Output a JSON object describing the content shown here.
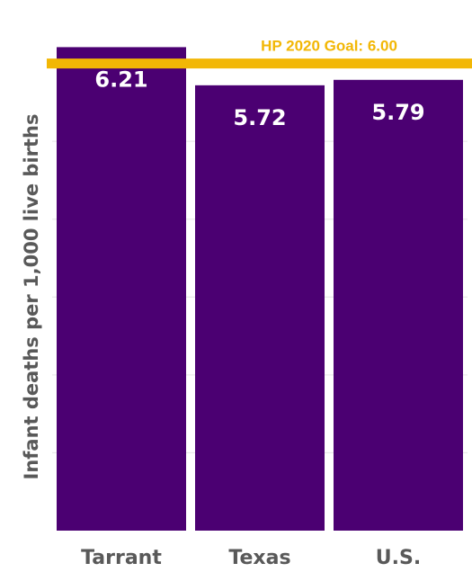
{
  "chart_data": {
    "type": "bar",
    "categories": [
      "Tarrant",
      "Texas",
      "U.S."
    ],
    "values": [
      6.21,
      5.72,
      5.79
    ],
    "value_labels": [
      "6.21",
      "5.72",
      "5.79"
    ],
    "ylabel": "Infant deaths per 1,000 live births",
    "goal": {
      "label": "HP 2020 Goal: 6.00",
      "value": 6.0,
      "color": "#F2B705"
    },
    "bar_color": "#4B0072",
    "grid": true,
    "gridline_values": [
      1,
      2,
      3,
      4,
      5,
      6
    ],
    "ylim": [
      0,
      6.7
    ]
  }
}
